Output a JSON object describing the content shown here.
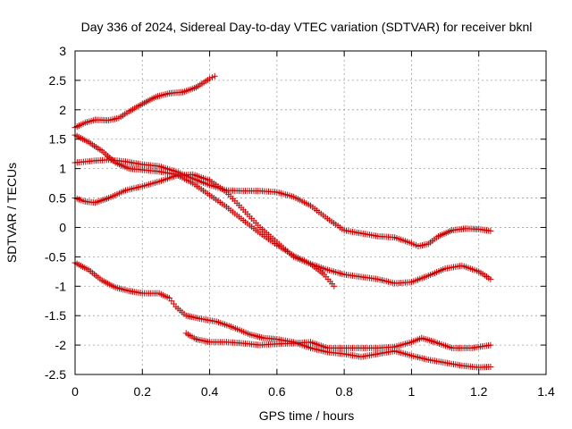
{
  "chart_data": {
    "type": "scatter",
    "title": "Day 336 of 2024, Sidereal Day-to-day VTEC variation (SDTVAR) for receiver bknl",
    "xlabel": "GPS time / hours",
    "ylabel": "SDTVAR / TECUs",
    "xlim": [
      0,
      1.4
    ],
    "ylim": [
      -2.5,
      3
    ],
    "xticks": [
      0,
      0.2,
      0.4,
      0.6,
      0.8,
      1,
      1.2,
      1.4
    ],
    "xtick_labels": [
      "0",
      "0.2",
      "0.4",
      "0.6",
      "0.8",
      "1",
      "1.2",
      "1.4"
    ],
    "yticks": [
      -2.5,
      -2,
      -1.5,
      -1,
      -0.5,
      0,
      0.5,
      1,
      1.5,
      2,
      2.5,
      3
    ],
    "ytick_labels": [
      "-2.5",
      "-2",
      "-1.5",
      "-1",
      "-0.5",
      "0",
      "0.5",
      "1",
      "1.5",
      "2",
      "2.5",
      "3"
    ],
    "grid": true,
    "marker": "+",
    "color": "#cc0000",
    "series": [
      {
        "name": "s1",
        "points": [
          [
            0,
            1.7
          ],
          [
            0.03,
            1.78
          ],
          [
            0.06,
            1.83
          ],
          [
            0.1,
            1.82
          ],
          [
            0.13,
            1.86
          ],
          [
            0.16,
            1.97
          ],
          [
            0.2,
            2.1
          ],
          [
            0.24,
            2.22
          ],
          [
            0.28,
            2.28
          ],
          [
            0.32,
            2.3
          ],
          [
            0.36,
            2.38
          ],
          [
            0.4,
            2.53
          ],
          [
            0.415,
            2.57
          ]
        ]
      },
      {
        "name": "s2",
        "points": [
          [
            0,
            1.1
          ],
          [
            0.05,
            1.13
          ],
          [
            0.1,
            1.15
          ],
          [
            0.15,
            1.12
          ],
          [
            0.2,
            1.07
          ],
          [
            0.25,
            1.04
          ],
          [
            0.3,
            0.95
          ],
          [
            0.35,
            0.83
          ],
          [
            0.4,
            0.72
          ],
          [
            0.45,
            0.63
          ],
          [
            0.5,
            0.62
          ],
          [
            0.55,
            0.62
          ],
          [
            0.6,
            0.6
          ],
          [
            0.65,
            0.52
          ],
          [
            0.7,
            0.37
          ],
          [
            0.75,
            0.15
          ],
          [
            0.8,
            -0.05
          ],
          [
            0.85,
            -0.1
          ],
          [
            0.9,
            -0.15
          ],
          [
            0.95,
            -0.17
          ],
          [
            1.0,
            -0.27
          ],
          [
            1.02,
            -0.32
          ],
          [
            1.05,
            -0.28
          ],
          [
            1.08,
            -0.15
          ],
          [
            1.12,
            -0.05
          ],
          [
            1.16,
            -0.02
          ],
          [
            1.2,
            -0.03
          ],
          [
            1.235,
            -0.06
          ]
        ]
      },
      {
        "name": "s3",
        "points": [
          [
            0,
            0.5
          ],
          [
            0.03,
            0.44
          ],
          [
            0.06,
            0.42
          ],
          [
            0.1,
            0.5
          ],
          [
            0.15,
            0.63
          ],
          [
            0.2,
            0.7
          ],
          [
            0.25,
            0.78
          ],
          [
            0.3,
            0.88
          ],
          [
            0.35,
            0.9
          ],
          [
            0.4,
            0.8
          ],
          [
            0.45,
            0.6
          ],
          [
            0.5,
            0.3
          ],
          [
            0.55,
            0.0
          ],
          [
            0.6,
            -0.25
          ],
          [
            0.65,
            -0.5
          ],
          [
            0.7,
            -0.62
          ],
          [
            0.75,
            -0.72
          ],
          [
            0.8,
            -0.8
          ],
          [
            0.85,
            -0.84
          ],
          [
            0.9,
            -0.88
          ],
          [
            0.95,
            -0.95
          ],
          [
            1.0,
            -0.93
          ],
          [
            1.05,
            -0.82
          ],
          [
            1.1,
            -0.7
          ],
          [
            1.15,
            -0.65
          ],
          [
            1.2,
            -0.75
          ],
          [
            1.235,
            -0.88
          ]
        ]
      },
      {
        "name": "s4",
        "points": [
          [
            0,
            1.57
          ],
          [
            0.04,
            1.45
          ],
          [
            0.08,
            1.3
          ],
          [
            0.12,
            1.1
          ],
          [
            0.16,
            1.0
          ],
          [
            0.2,
            0.98
          ],
          [
            0.25,
            0.95
          ],
          [
            0.3,
            0.9
          ],
          [
            0.35,
            0.75
          ],
          [
            0.4,
            0.55
          ],
          [
            0.45,
            0.35
          ],
          [
            0.5,
            0.12
          ],
          [
            0.55,
            -0.1
          ],
          [
            0.6,
            -0.3
          ],
          [
            0.65,
            -0.48
          ],
          [
            0.7,
            -0.62
          ],
          [
            0.74,
            -0.8
          ],
          [
            0.77,
            -1.0
          ]
        ]
      },
      {
        "name": "s5",
        "points": [
          [
            0,
            -0.6
          ],
          [
            0.04,
            -0.72
          ],
          [
            0.08,
            -0.9
          ],
          [
            0.12,
            -1.02
          ],
          [
            0.16,
            -1.08
          ],
          [
            0.2,
            -1.12
          ],
          [
            0.25,
            -1.12
          ],
          [
            0.28,
            -1.2
          ],
          [
            0.3,
            -1.35
          ],
          [
            0.33,
            -1.5
          ],
          [
            0.37,
            -1.55
          ],
          [
            0.42,
            -1.6
          ],
          [
            0.47,
            -1.7
          ],
          [
            0.52,
            -1.82
          ],
          [
            0.56,
            -1.88
          ],
          [
            0.6,
            -1.9
          ],
          [
            0.65,
            -1.95
          ],
          [
            0.7,
            -2.05
          ],
          [
            0.75,
            -2.12
          ],
          [
            0.8,
            -2.15
          ],
          [
            0.85,
            -2.2
          ],
          [
            0.9,
            -2.15
          ],
          [
            0.95,
            -2.1
          ],
          [
            1.0,
            -2.18
          ],
          [
            1.05,
            -2.25
          ],
          [
            1.1,
            -2.3
          ],
          [
            1.15,
            -2.35
          ],
          [
            1.2,
            -2.38
          ],
          [
            1.235,
            -2.37
          ]
        ]
      },
      {
        "name": "s6",
        "points": [
          [
            0.33,
            -1.8
          ],
          [
            0.36,
            -1.9
          ],
          [
            0.4,
            -1.95
          ],
          [
            0.45,
            -1.95
          ],
          [
            0.5,
            -1.97
          ],
          [
            0.55,
            -2.0
          ],
          [
            0.6,
            -1.98
          ],
          [
            0.65,
            -1.97
          ],
          [
            0.7,
            -1.95
          ],
          [
            0.75,
            -2.05
          ],
          [
            0.8,
            -2.05
          ],
          [
            0.85,
            -2.05
          ],
          [
            0.9,
            -2.05
          ],
          [
            0.95,
            -2.03
          ],
          [
            1.0,
            -1.95
          ],
          [
            1.03,
            -1.88
          ],
          [
            1.07,
            -1.95
          ],
          [
            1.12,
            -2.05
          ],
          [
            1.18,
            -2.05
          ],
          [
            1.235,
            -2.0
          ]
        ]
      }
    ]
  }
}
